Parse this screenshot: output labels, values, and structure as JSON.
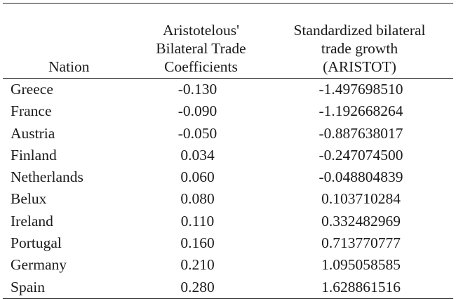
{
  "table": {
    "headers": {
      "nation": "Nation",
      "coefficients": [
        "Aristotelous'",
        "Bilateral Trade",
        "Coefficients"
      ],
      "standardized": [
        "Standardized bilateral",
        "trade growth",
        "(ARISTOT)"
      ]
    },
    "rows": [
      {
        "nation": "Greece",
        "coef": "-0.130",
        "std": "-1.497698510"
      },
      {
        "nation": "France",
        "coef": "-0.090",
        "std": "-1.192668264"
      },
      {
        "nation": "Austria",
        "coef": "-0.050",
        "std": "-0.887638017"
      },
      {
        "nation": "Finland",
        "coef": "0.034",
        "std": "-0.247074500"
      },
      {
        "nation": "Netherlands",
        "coef": "0.060",
        "std": "-0.048804839"
      },
      {
        "nation": "Belux",
        "coef": "0.080",
        "std": "0.103710284"
      },
      {
        "nation": "Ireland",
        "coef": "0.110",
        "std": "0.332482969"
      },
      {
        "nation": "Portugal",
        "coef": "0.160",
        "std": "0.713770777"
      },
      {
        "nation": "Germany",
        "coef": "0.210",
        "std": "1.095058585"
      },
      {
        "nation": "Spain",
        "coef": "0.280",
        "std": "1.628861516"
      }
    ]
  }
}
